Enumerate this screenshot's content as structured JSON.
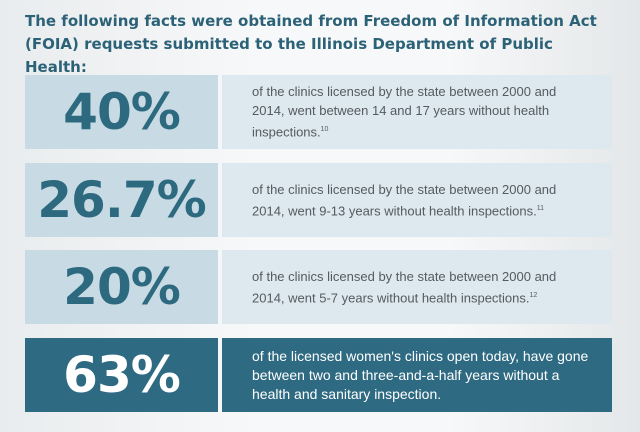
{
  "header": {
    "title": "The following facts were obtained from Freedom of Information Act (FOIA) requests submitted to the Illinois Department of Public Health:"
  },
  "facts": [
    {
      "stat": "40%",
      "text": "of the clinics licensed by the state between 2000 and 2014, went between 14 and 17 years without health inspections.",
      "note": "10"
    },
    {
      "stat": "26.7%",
      "text": "of the clinics licensed by the state between 2000 and 2014, went 9-13 years without health inspections.",
      "note": "11"
    },
    {
      "stat": "20%",
      "text": "of the clinics licensed by the state between 2000 and 2014, went 5-7 years without health inspections.",
      "note": "12"
    },
    {
      "stat": "63%",
      "text": "of the licensed women's clinics open today, have gone between two and three-and-a-half years without a health and sanitary inspection."
    }
  ]
}
